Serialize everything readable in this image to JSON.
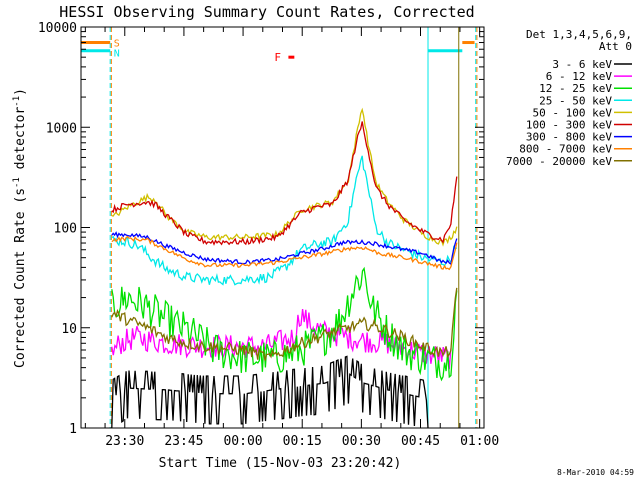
{
  "chart_data": {
    "type": "line",
    "title": "HESSI Observing Summary Count Rates, Corrected",
    "xlabel": "Start Time (15-Nov-03 23:20:42)",
    "ylabel": "Corrected Count Rate (s⁻¹ detector⁻¹)",
    "ylabel_base": "Corrected Count Rate (s",
    "ylabel_sup1": "-1",
    "ylabel_mid": " detector",
    "ylabel_sup2": "-1",
    "ylabel_end": ")",
    "yscale": "log",
    "ylim": [
      1,
      10000
    ],
    "xlim_minutes": [
      -1.8,
      100.4
    ],
    "x_ticks": [
      {
        "m": 9.3,
        "label": "23:30"
      },
      {
        "m": 24.3,
        "label": "23:45"
      },
      {
        "m": 39.3,
        "label": "00:00"
      },
      {
        "m": 54.3,
        "label": "00:15"
      },
      {
        "m": 69.3,
        "label": "00:30"
      },
      {
        "m": 84.3,
        "label": "00:45"
      },
      {
        "m": 99.3,
        "label": "01:00"
      }
    ],
    "y_ticks": [
      {
        "v": 1,
        "label": "1"
      },
      {
        "v": 10,
        "label": "10"
      },
      {
        "v": 100,
        "label": "100"
      },
      {
        "v": 1000,
        "label": "1000"
      },
      {
        "v": 10000,
        "label": "10000"
      }
    ],
    "legend": {
      "header": [
        "Det 1,3,4,5,6,9,",
        "Att 0"
      ],
      "entries": [
        {
          "label": "3 - 6 keV",
          "color": "#000000"
        },
        {
          "label": "6 - 12 keV",
          "color": "#ff00ff"
        },
        {
          "label": "12 - 25 keV",
          "color": "#00e000"
        },
        {
          "label": "25 - 50 keV",
          "color": "#00e8e8"
        },
        {
          "label": "50 - 100 keV",
          "color": "#d0c000"
        },
        {
          "label": "100 - 300 keV",
          "color": "#d00000"
        },
        {
          "label": "300 - 800 keV",
          "color": "#0000ff"
        },
        {
          "label": "800 - 7000 keV",
          "color": "#ff8000"
        },
        {
          "label": "7000 - 20000 keV",
          "color": "#807000"
        }
      ]
    },
    "flags": {
      "saa_label": "S",
      "night_label": "N",
      "flare_label": "F",
      "saa_color": "#ff8000",
      "night_color": "#00e8e8",
      "flare_color": "#ff0000",
      "saa_level": 7000,
      "night_level": 5800,
      "flare_level": 5000,
      "night_intervals_minutes": [
        [
          -1.8,
          5.6
        ],
        [
          86.2,
          94.9
        ]
      ],
      "saa_intervals_minutes": [
        [
          -1.8,
          5.6
        ],
        [
          94.9,
          98.0
        ]
      ],
      "flare_interval_minutes": [
        50.8,
        52.3
      ],
      "markers_minutes": [
        {
          "m": 5.6,
          "color": "#00e8e8",
          "dashed": true
        },
        {
          "m": 5.9,
          "color": "#ff8000",
          "dashed": true
        },
        {
          "m": 86.2,
          "color": "#00e8e8",
          "dashed": false
        },
        {
          "m": 94.0,
          "color": "#807000",
          "dashed": false
        },
        {
          "m": 98.3,
          "color": "#00e8e8",
          "dashed": true
        },
        {
          "m": 98.6,
          "color": "#ff8000",
          "dashed": true
        }
      ]
    },
    "series": [
      {
        "name": "3 - 6 keV",
        "color": "#000000",
        "noise": 0.1,
        "binary": true,
        "points": [
          [
            6,
            2
          ],
          [
            10,
            2.5
          ],
          [
            20,
            2.4
          ],
          [
            30,
            2.2
          ],
          [
            40,
            2.2
          ],
          [
            50,
            2.5
          ],
          [
            60,
            2.8
          ],
          [
            66,
            3.5
          ],
          [
            70,
            2.8
          ],
          [
            76,
            2.4
          ],
          [
            85,
            2
          ],
          [
            86.2,
            1
          ]
        ]
      },
      {
        "name": "6 - 12 keV",
        "color": "#ff00ff",
        "noise": 0.12,
        "points": [
          [
            6,
            5.5
          ],
          [
            8,
            7
          ],
          [
            12,
            8
          ],
          [
            20,
            7
          ],
          [
            30,
            6.5
          ],
          [
            45,
            6.5
          ],
          [
            52,
            8
          ],
          [
            54,
            14
          ],
          [
            56,
            11
          ],
          [
            60,
            9
          ],
          [
            66,
            8
          ],
          [
            70,
            7.5
          ],
          [
            76,
            7
          ],
          [
            85,
            5.5
          ],
          [
            92,
            5
          ]
        ]
      },
      {
        "name": "12 - 25 keV",
        "color": "#00e000",
        "noise": 0.18,
        "points": [
          [
            6,
            16
          ],
          [
            10,
            20
          ],
          [
            14,
            17
          ],
          [
            20,
            12
          ],
          [
            26,
            9
          ],
          [
            32,
            6
          ],
          [
            40,
            5
          ],
          [
            48,
            5
          ],
          [
            54,
            6
          ],
          [
            60,
            8
          ],
          [
            64,
            12
          ],
          [
            68,
            28
          ],
          [
            70,
            36
          ],
          [
            72,
            16
          ],
          [
            76,
            9
          ],
          [
            80,
            6
          ],
          [
            85,
            5
          ],
          [
            90,
            4.5
          ],
          [
            92,
            5
          ],
          [
            93.5,
            25
          ]
        ]
      },
      {
        "name": "25 - 50 keV",
        "color": "#00e8e8",
        "noise": 0.05,
        "points": [
          [
            6,
            75
          ],
          [
            10,
            72
          ],
          [
            13,
            65
          ],
          [
            16,
            50
          ],
          [
            20,
            38
          ],
          [
            25,
            32
          ],
          [
            30,
            30
          ],
          [
            38,
            30
          ],
          [
            46,
            32
          ],
          [
            50,
            40
          ],
          [
            54,
            60
          ],
          [
            58,
            68
          ],
          [
            62,
            72
          ],
          [
            66,
            120
          ],
          [
            68,
            300
          ],
          [
            69.5,
            500
          ],
          [
            71,
            250
          ],
          [
            73,
            100
          ],
          [
            76,
            70
          ],
          [
            80,
            60
          ],
          [
            85,
            50
          ],
          [
            90,
            45
          ],
          [
            92,
            48
          ],
          [
            93.5,
            70
          ]
        ]
      },
      {
        "name": "50 - 100 keV",
        "color": "#d0c000",
        "noise": 0.03,
        "points": [
          [
            6,
            125
          ],
          [
            10,
            160
          ],
          [
            15,
            200
          ],
          [
            17,
            190
          ],
          [
            20,
            130
          ],
          [
            25,
            90
          ],
          [
            30,
            80
          ],
          [
            40,
            80
          ],
          [
            48,
            85
          ],
          [
            54,
            150
          ],
          [
            58,
            165
          ],
          [
            62,
            180
          ],
          [
            66,
            300
          ],
          [
            68,
            800
          ],
          [
            69.5,
            1600
          ],
          [
            71,
            700
          ],
          [
            73,
            280
          ],
          [
            76,
            180
          ],
          [
            80,
            120
          ],
          [
            85,
            85
          ],
          [
            90,
            70
          ],
          [
            92,
            80
          ],
          [
            93.5,
            100
          ]
        ]
      },
      {
        "name": "100 - 300 keV",
        "color": "#d00000",
        "noise": 0.03,
        "points": [
          [
            6,
            150
          ],
          [
            10,
            170
          ],
          [
            15,
            180
          ],
          [
            17,
            170
          ],
          [
            20,
            130
          ],
          [
            25,
            85
          ],
          [
            30,
            72
          ],
          [
            40,
            72
          ],
          [
            48,
            80
          ],
          [
            54,
            140
          ],
          [
            58,
            160
          ],
          [
            62,
            170
          ],
          [
            66,
            300
          ],
          [
            68,
            700
          ],
          [
            69.5,
            1100
          ],
          [
            71,
            600
          ],
          [
            73,
            250
          ],
          [
            76,
            170
          ],
          [
            80,
            120
          ],
          [
            85,
            90
          ],
          [
            90,
            75
          ],
          [
            92,
            110
          ],
          [
            93.5,
            320
          ]
        ]
      },
      {
        "name": "300 - 800 keV",
        "color": "#0000ff",
        "noise": 0.02,
        "points": [
          [
            6,
            85
          ],
          [
            10,
            85
          ],
          [
            15,
            80
          ],
          [
            20,
            65
          ],
          [
            25,
            55
          ],
          [
            30,
            48
          ],
          [
            40,
            45
          ],
          [
            48,
            48
          ],
          [
            54,
            55
          ],
          [
            60,
            62
          ],
          [
            64,
            70
          ],
          [
            68,
            72
          ],
          [
            72,
            70
          ],
          [
            76,
            65
          ],
          [
            80,
            60
          ],
          [
            85,
            55
          ],
          [
            90,
            45
          ],
          [
            92,
            45
          ],
          [
            93.5,
            80
          ]
        ]
      },
      {
        "name": "800 - 7000 keV",
        "color": "#ff8000",
        "noise": 0.02,
        "points": [
          [
            6,
            75
          ],
          [
            10,
            78
          ],
          [
            15,
            75
          ],
          [
            20,
            60
          ],
          [
            25,
            48
          ],
          [
            30,
            42
          ],
          [
            40,
            42
          ],
          [
            48,
            45
          ],
          [
            54,
            50
          ],
          [
            60,
            55
          ],
          [
            66,
            62
          ],
          [
            70,
            63
          ],
          [
            74,
            55
          ],
          [
            80,
            50
          ],
          [
            85,
            45
          ],
          [
            90,
            40
          ],
          [
            92,
            40
          ],
          [
            93.5,
            70
          ]
        ]
      },
      {
        "name": "7000 - 20000 keV",
        "color": "#807000",
        "noise": 0.06,
        "points": [
          [
            6,
            14
          ],
          [
            10,
            12
          ],
          [
            15,
            10
          ],
          [
            20,
            8
          ],
          [
            25,
            7
          ],
          [
            30,
            6.5
          ],
          [
            40,
            6
          ],
          [
            46,
            5
          ],
          [
            52,
            6.5
          ],
          [
            56,
            7.5
          ],
          [
            62,
            9
          ],
          [
            66,
            10
          ],
          [
            70,
            11
          ],
          [
            74,
            10
          ],
          [
            80,
            8
          ],
          [
            85,
            6.5
          ],
          [
            90,
            5.5
          ],
          [
            92,
            6
          ],
          [
            93.5,
            25
          ]
        ]
      }
    ]
  },
  "footer": {
    "timestamp": "8-Mar-2010 04:59"
  }
}
